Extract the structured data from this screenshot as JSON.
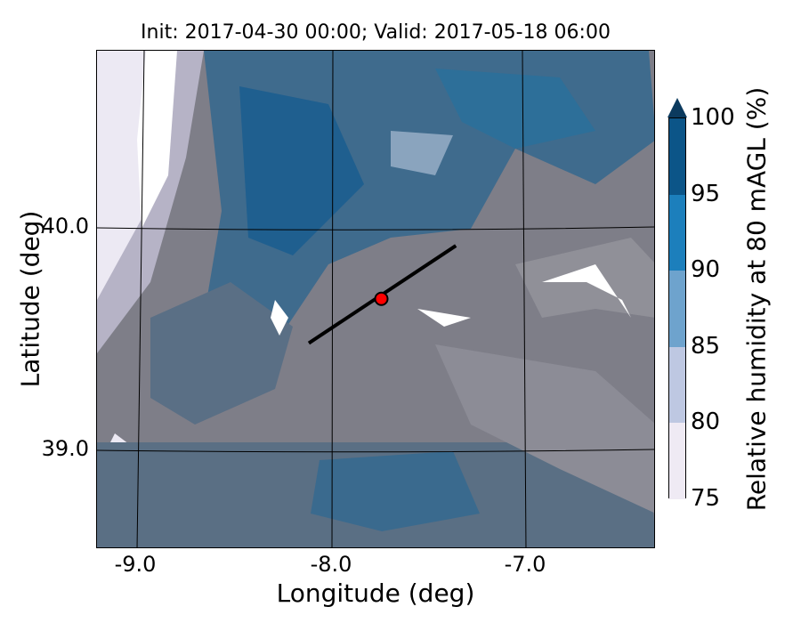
{
  "title": "Init: 2017-04-30 00:00; Valid: 2017-05-18 06:00",
  "axes": {
    "xlabel": "Longitude (deg)",
    "ylabel": "Latitude (deg)",
    "xticks": [
      "-9.0",
      "-8.0",
      "-7.0"
    ],
    "yticks": [
      "40.0",
      "39.0"
    ]
  },
  "colorbar": {
    "label": "Relative humidity at 80 mAGL (%)",
    "ticks": [
      "75",
      "80",
      "85",
      "90",
      "95",
      "100"
    ],
    "levels": [
      {
        "from": 75,
        "to": 80,
        "color": "#efeaf4"
      },
      {
        "from": 80,
        "to": 85,
        "color": "#bec8e2"
      },
      {
        "from": 85,
        "to": 90,
        "color": "#6ea3cd"
      },
      {
        "from": 90,
        "to": 95,
        "color": "#1c7fbc"
      },
      {
        "from": 95,
        "to": 100,
        "color": "#0c5588"
      }
    ],
    "extend_color": "#0b3a5e"
  },
  "map": {
    "lon_range": [
      -9.2,
      -6.35
    ],
    "lat_range": [
      38.55,
      40.8
    ],
    "marker": {
      "lon": -7.75,
      "lat": 39.68,
      "color": "#ff0000"
    },
    "transect": {
      "start": {
        "lon": -8.12,
        "lat": 39.48
      },
      "end": {
        "lon": -7.37,
        "lat": 39.92
      }
    }
  }
}
